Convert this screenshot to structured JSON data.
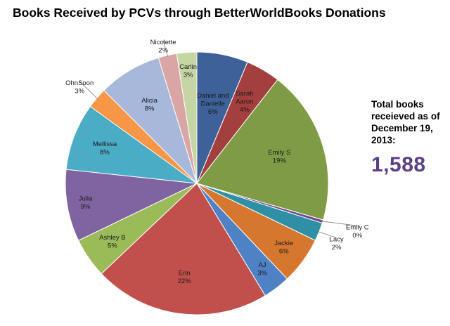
{
  "chart_data": {
    "type": "pie",
    "title": "Books Received by PCVs through BetterWorldBooks Donations",
    "slices": [
      {
        "name": "Daniel and Danielle",
        "label_lines": [
          "Daniel and",
          "Danielle"
        ],
        "percent_label": "6%",
        "value": 6.4,
        "color": "#3e6199"
      },
      {
        "name": "Sarah Aaron",
        "label_lines": [
          "Sarah",
          "Aaron"
        ],
        "percent_label": "4%",
        "value": 4.3,
        "color": "#a33f3f"
      },
      {
        "name": "Emily S",
        "label_lines": [
          "Emily S"
        ],
        "percent_label": "19%",
        "value": 19.3,
        "color": "#7f9b45"
      },
      {
        "name": "Emily C",
        "label_lines": [
          "Emily C"
        ],
        "percent_label": "0%",
        "value": 0.4,
        "color": "#6a4a91"
      },
      {
        "name": "Lacy",
        "label_lines": [
          "Lacy"
        ],
        "percent_label": "2%",
        "value": 2.3,
        "color": "#2f8fa5"
      },
      {
        "name": "Jackie",
        "label_lines": [
          "Jackie"
        ],
        "percent_label": "6%",
        "value": 5.9,
        "color": "#d6772f"
      },
      {
        "name": "AJ",
        "label_lines": [
          "AJ"
        ],
        "percent_label": "3%",
        "value": 3.4,
        "color": "#4f81c5"
      },
      {
        "name": "Erin",
        "label_lines": [
          "Erin"
        ],
        "percent_label": "22%",
        "value": 22.0,
        "color": "#c14f4c"
      },
      {
        "name": "Ashley B",
        "label_lines": [
          "Ashley B"
        ],
        "percent_label": "5%",
        "value": 5.0,
        "color": "#9bbb59"
      },
      {
        "name": "Julia",
        "label_lines": [
          "Julia"
        ],
        "percent_label": "9%",
        "value": 9.0,
        "color": "#8064a2"
      },
      {
        "name": "Mellissa",
        "label_lines": [
          "Mellissa"
        ],
        "percent_label": "8%",
        "value": 8.4,
        "color": "#4bacc6"
      },
      {
        "name": "OhnSoon",
        "label_lines": [
          "OhnSoon"
        ],
        "percent_label": "3%",
        "value": 2.6,
        "color": "#f79646"
      },
      {
        "name": "Alicia",
        "label_lines": [
          "Alicia"
        ],
        "percent_label": "8%",
        "value": 7.9,
        "color": "#a7b8da"
      },
      {
        "name": "Nicolette",
        "label_lines": [
          "Nicolette"
        ],
        "percent_label": "2%",
        "value": 2.3,
        "color": "#d9a6a5"
      },
      {
        "name": "Carlin",
        "label_lines": [
          "Carlin"
        ],
        "percent_label": "3%",
        "value": 2.5,
        "color": "#c4d6a4"
      }
    ]
  },
  "total": {
    "note": "Total books receieved as of December 19, 2013:",
    "value": "1,588"
  }
}
